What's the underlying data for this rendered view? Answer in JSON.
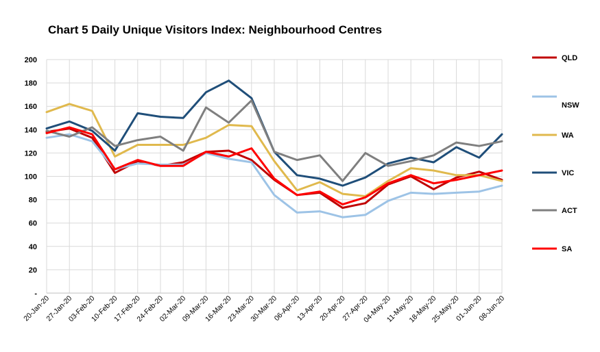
{
  "chart_data": {
    "type": "line",
    "title": "Chart 5 Daily Unique Visitors Index: Neighbourhood Centres",
    "xlabel": "",
    "ylabel": "",
    "ylim": [
      0,
      200
    ],
    "y_ticks": [
      {
        "value": 0,
        "label": "-"
      },
      {
        "value": 20,
        "label": "20"
      },
      {
        "value": 40,
        "label": "40"
      },
      {
        "value": 60,
        "label": "60"
      },
      {
        "value": 80,
        "label": "80"
      },
      {
        "value": 100,
        "label": "100"
      },
      {
        "value": 120,
        "label": "120"
      },
      {
        "value": 140,
        "label": "140"
      },
      {
        "value": 160,
        "label": "160"
      },
      {
        "value": 180,
        "label": "180"
      },
      {
        "value": 200,
        "label": "200"
      }
    ],
    "grid": true,
    "legend_position": "right",
    "categories": [
      "20-Jan-20",
      "27-Jan-20",
      "03-Feb-20",
      "10-Feb-20",
      "17-Feb-20",
      "24-Feb-20",
      "02-Mar-20",
      "09-Mar-20",
      "16-Mar-20",
      "23-Mar-20",
      "30-Mar-20",
      "06-Apr-20",
      "13-Apr-20",
      "20-Apr-20",
      "27-Apr-20",
      "04-May-20",
      "11-May-20",
      "18-May-20",
      "25-May-20",
      "01-Jun-20",
      "08-Jun-20"
    ],
    "series": [
      {
        "name": "QLD",
        "color": "#c00000",
        "values": [
          138,
          141,
          133,
          103,
          113,
          109,
          112,
          121,
          122,
          114,
          97,
          84,
          86,
          73,
          77,
          93,
          100,
          89,
          99,
          104,
          97
        ]
      },
      {
        "name": "NSW",
        "color": "#9dc3e6",
        "values": [
          133,
          136,
          130,
          106,
          111,
          110,
          110,
          120,
          115,
          112,
          84,
          69,
          70,
          65,
          67,
          79,
          86,
          85,
          86,
          87,
          92
        ]
      },
      {
        "name": "WA",
        "color": "#e0b94d",
        "values": [
          155,
          162,
          156,
          117,
          127,
          127,
          127,
          133,
          144,
          143,
          113,
          88,
          95,
          85,
          83,
          96,
          107,
          105,
          101,
          101,
          96
        ]
      },
      {
        "name": "VIC",
        "color": "#1f4e79",
        "values": [
          141,
          147,
          139,
          122,
          154,
          151,
          150,
          172,
          182,
          167,
          121,
          101,
          98,
          92,
          99,
          111,
          116,
          112,
          125,
          116,
          136
        ]
      },
      {
        "name": "ACT",
        "color": "#7f7f7f",
        "values": [
          139,
          134,
          142,
          126,
          131,
          134,
          122,
          159,
          146,
          165,
          121,
          114,
          118,
          96,
          120,
          109,
          113,
          118,
          129,
          126,
          130
        ]
      },
      {
        "name": "SA",
        "color": "#ff0000",
        "values": [
          137,
          142,
          136,
          106,
          114,
          109,
          109,
          121,
          117,
          124,
          98,
          84,
          87,
          76,
          82,
          94,
          101,
          94,
          97,
          101,
          105
        ]
      }
    ]
  }
}
